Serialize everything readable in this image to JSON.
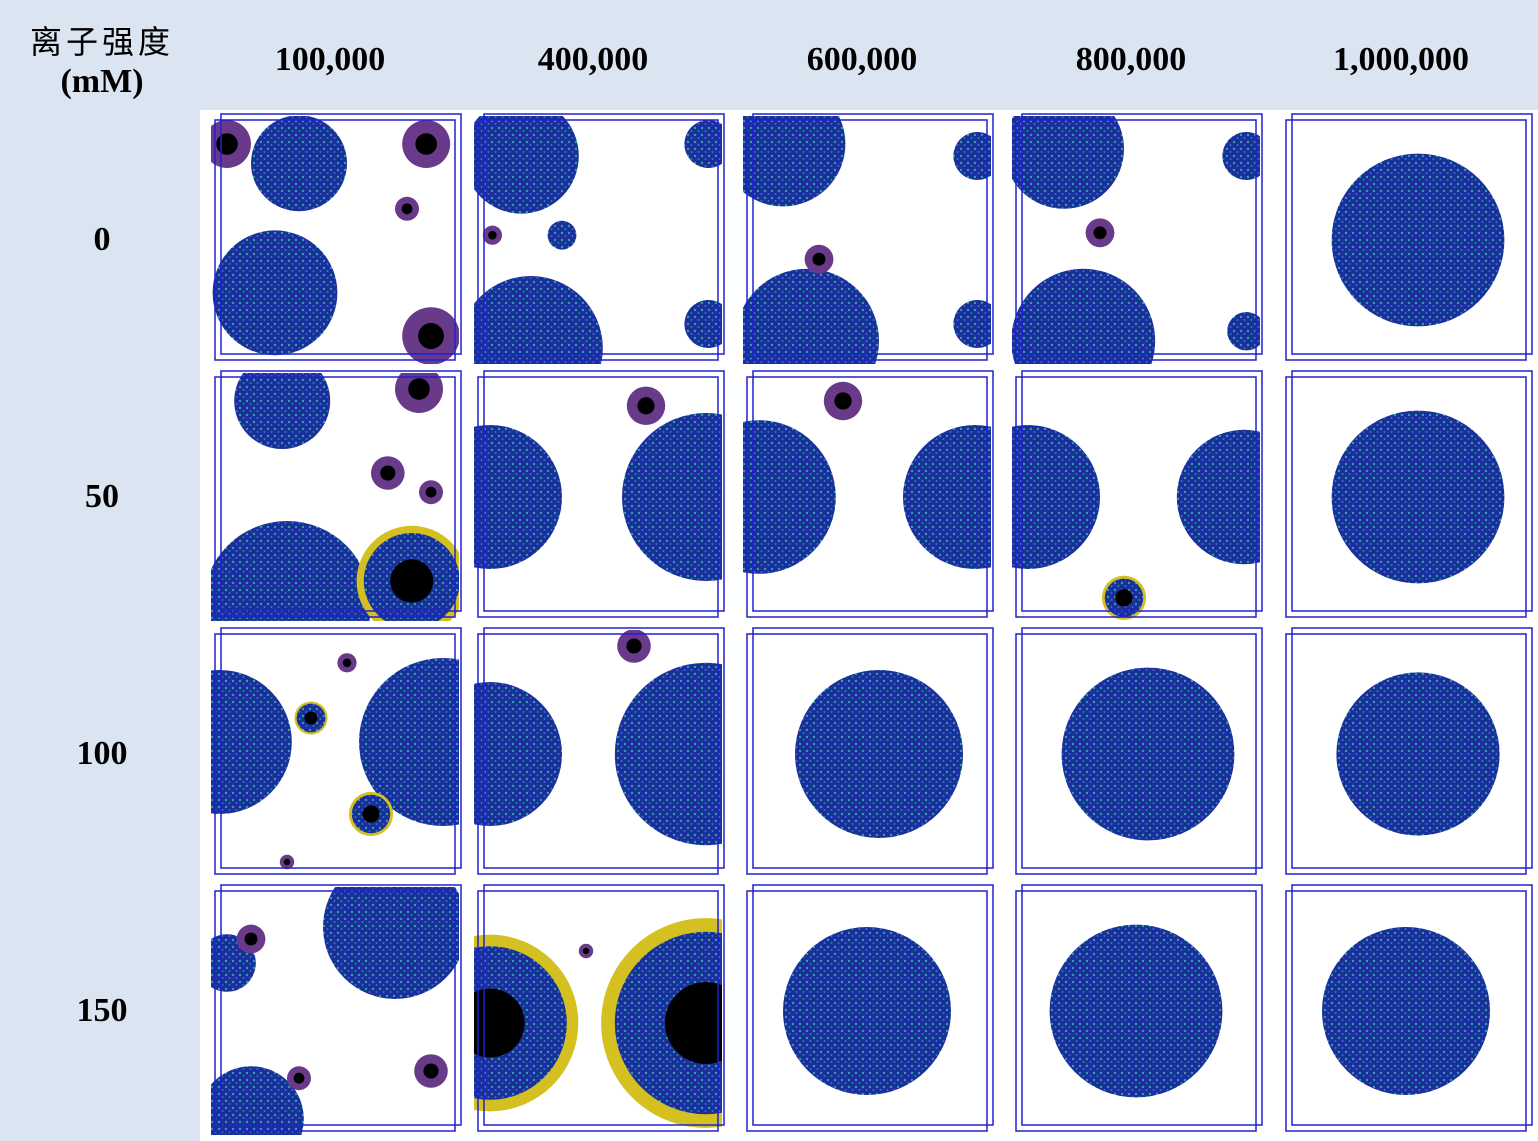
{
  "header": {
    "corner_title": "离子强度",
    "corner_unit": "(mM)",
    "columns": [
      "100,000",
      "400,000",
      "600,000",
      "800,000",
      "1,000,000"
    ]
  },
  "rows": [
    "0",
    "50",
    "100",
    "150"
  ]
}
